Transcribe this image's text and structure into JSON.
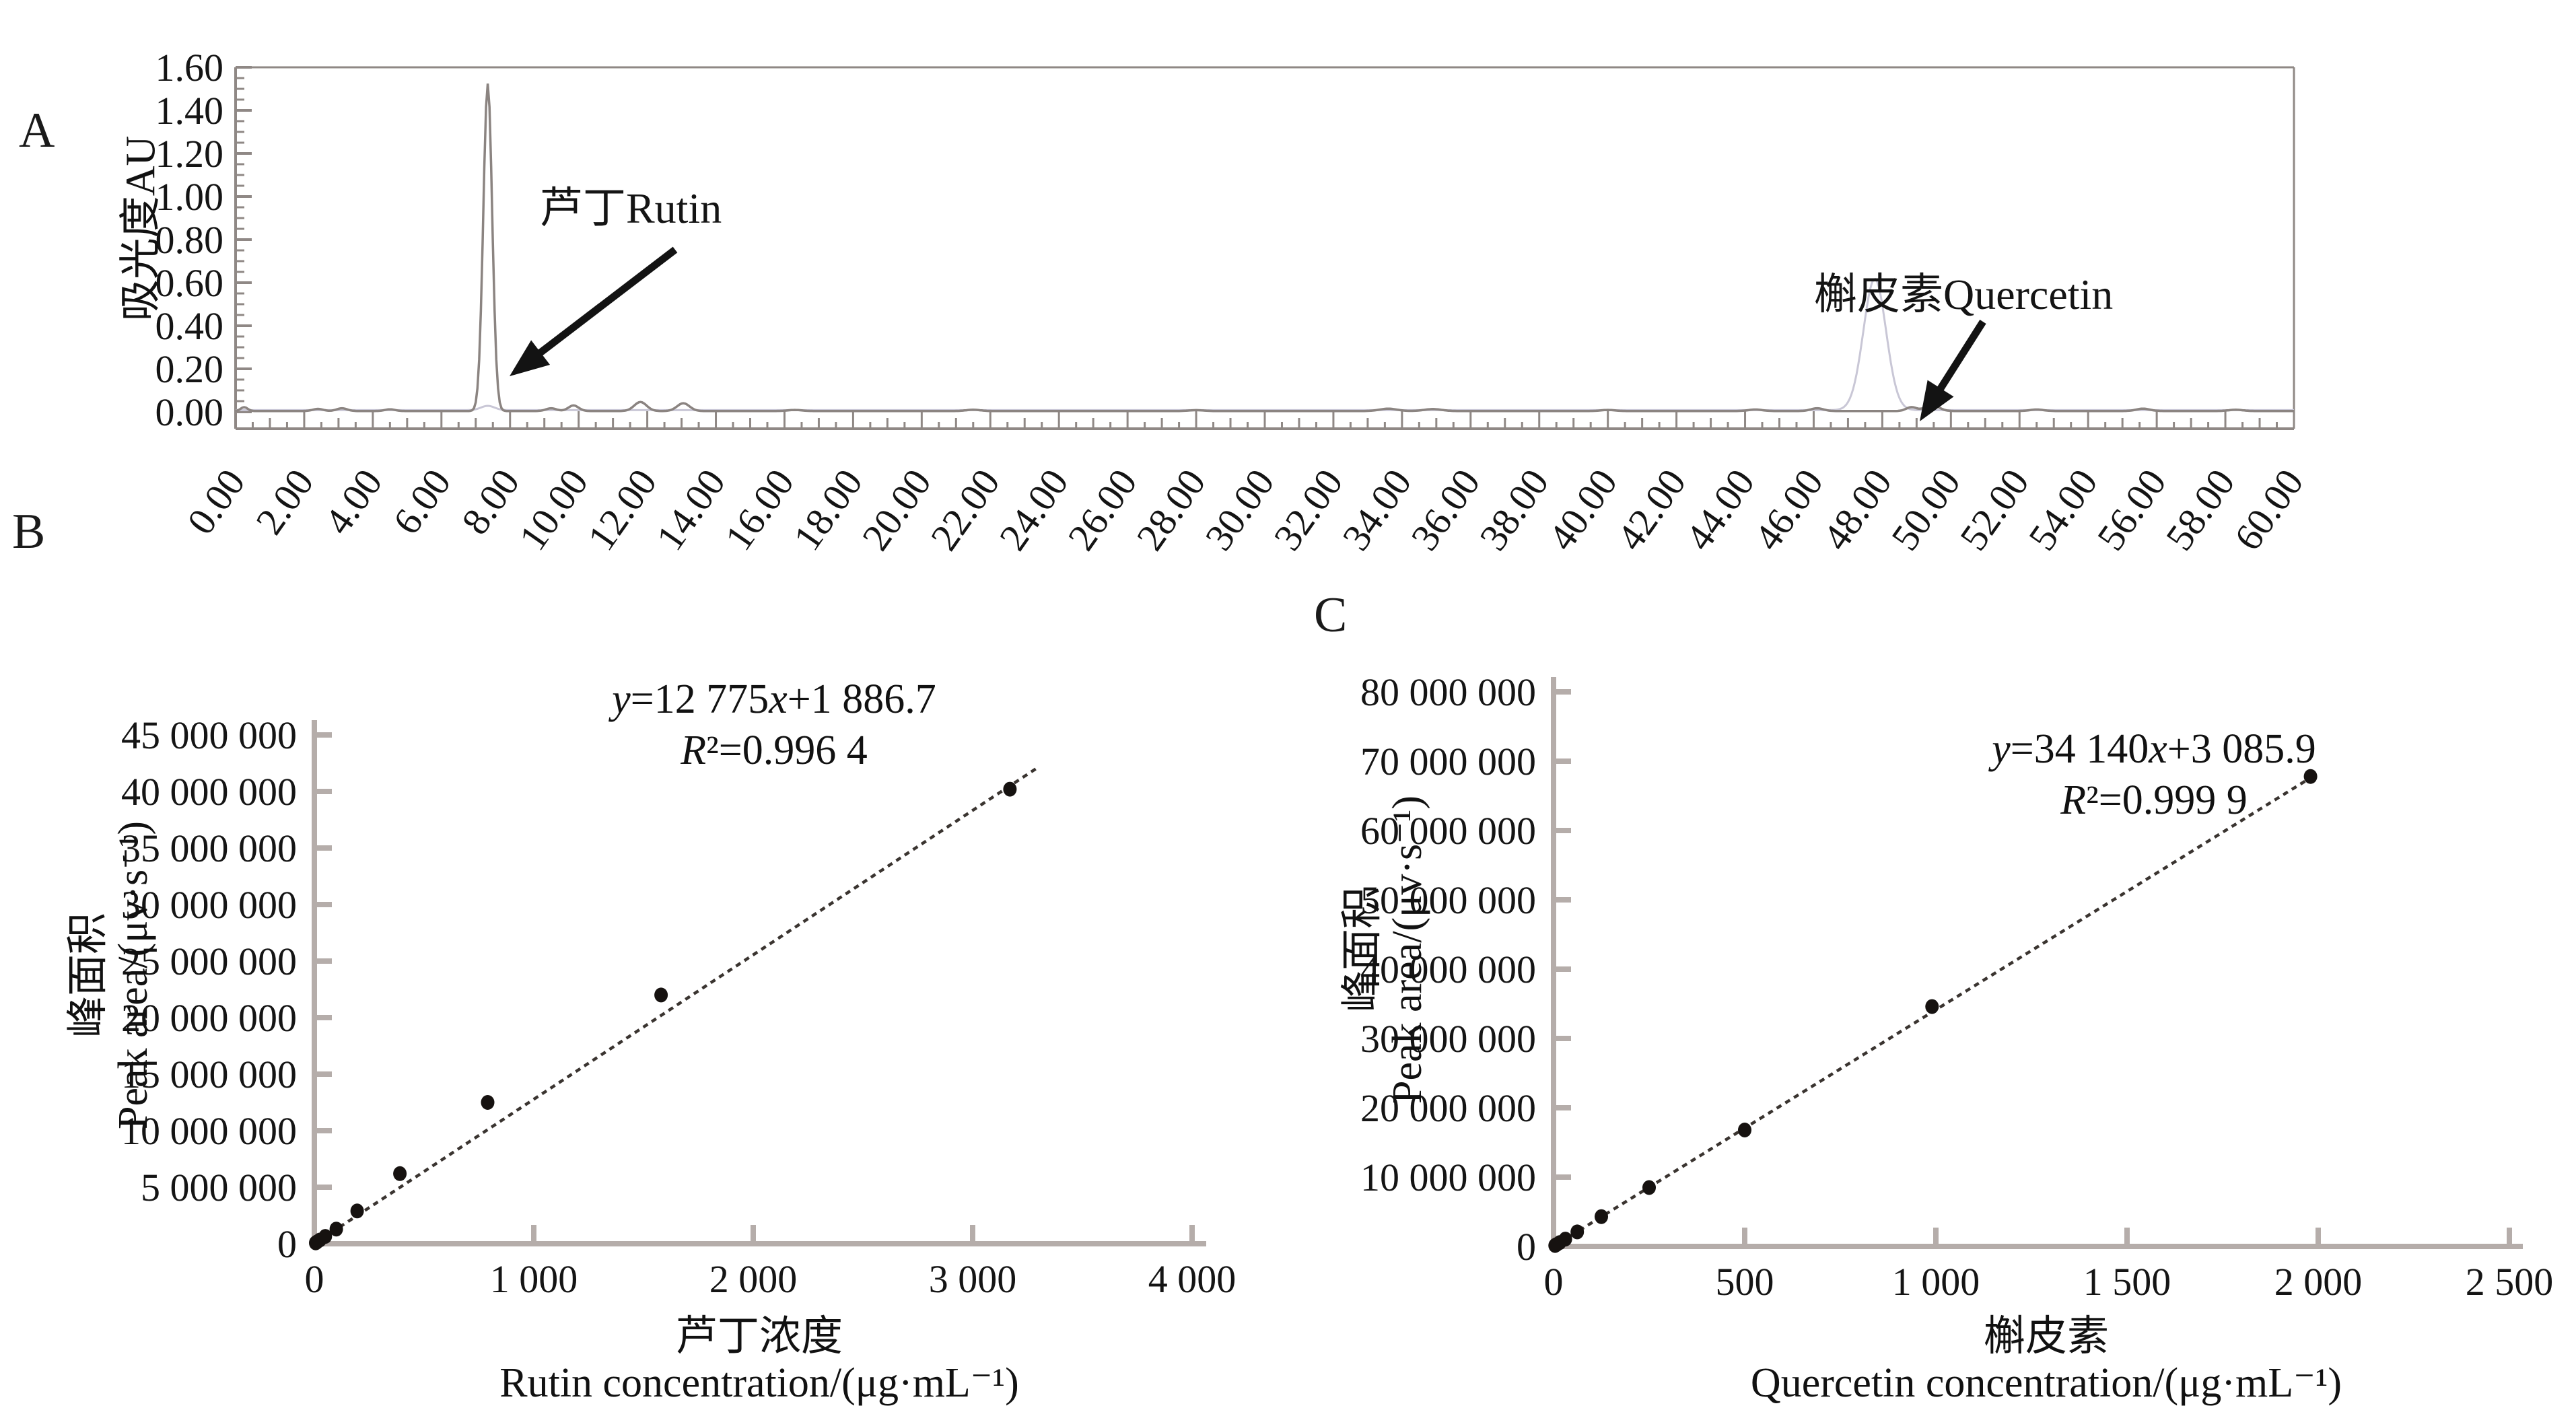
{
  "figure": {
    "background": "#ffffff",
    "text_color": "#141414",
    "axis_color_light": "#b5adaa",
    "axis_color_dark": "#8f8885",
    "trace_color": "#8b8481",
    "trace_color_light": "#c9c7d6",
    "point_color": "#161210",
    "fit_line_color": "#3a3430"
  },
  "chart_data": [
    {
      "id": "hplc-chromatogram",
      "type": "line",
      "panel_label": "A",
      "ylabel": "吸光度AU",
      "xlim": [
        0,
        60
      ],
      "ylim": [
        0,
        1.6
      ],
      "x_tick_step": 2,
      "x_minor_step": 0.5,
      "y_tick_step": 0.2,
      "y_minor_step": 0.05,
      "x_tick_labels": [
        "0.00",
        "2.00",
        "4.00",
        "6.00",
        "8.00",
        "10.00",
        "12.00",
        "14.00",
        "16.00",
        "18.00",
        "20.00",
        "22.00",
        "24.00",
        "26.00",
        "28.00",
        "30.00",
        "32.00",
        "34.00",
        "36.00",
        "38.00",
        "40.00",
        "42.00",
        "44.00",
        "46.00",
        "48.00",
        "50.00",
        "52.00",
        "54.00",
        "56.00",
        "58.00",
        "60.00"
      ],
      "y_tick_labels": [
        "0.00",
        "0.20",
        "0.40",
        "0.60",
        "0.80",
        "1.00",
        "1.20",
        "1.40",
        "1.60"
      ],
      "peaks": [
        {
          "label": "芦丁Rutin",
          "time_min": 7.35,
          "height_au": 1.52,
          "sigma": 0.13
        },
        {
          "label": "槲皮素Quercetin",
          "time_min": 47.78,
          "height_au": 0.61,
          "sigma": 0.33
        }
      ],
      "noise_bumps": [
        [
          0.25,
          0.018,
          0.1
        ],
        [
          2.4,
          0.01,
          0.15
        ],
        [
          3.1,
          0.013,
          0.15
        ],
        [
          4.5,
          0.008,
          0.15
        ],
        [
          9.2,
          0.013,
          0.15
        ],
        [
          9.85,
          0.026,
          0.15
        ],
        [
          11.8,
          0.042,
          0.18
        ],
        [
          13.05,
          0.036,
          0.18
        ],
        [
          16.3,
          0.005,
          0.2
        ],
        [
          21.5,
          0.006,
          0.2
        ],
        [
          28.0,
          0.004,
          0.2
        ],
        [
          33.6,
          0.011,
          0.25
        ],
        [
          34.9,
          0.009,
          0.25
        ],
        [
          40.0,
          0.005,
          0.2
        ],
        [
          44.3,
          0.007,
          0.2
        ],
        [
          46.1,
          0.013,
          0.18
        ],
        [
          48.85,
          0.018,
          0.15
        ],
        [
          49.45,
          0.028,
          0.2
        ],
        [
          52.5,
          0.007,
          0.2
        ],
        [
          55.6,
          0.011,
          0.2
        ],
        [
          58.3,
          0.006,
          0.2
        ]
      ]
    },
    {
      "id": "rutin-calibration",
      "type": "scatter",
      "panel_label": "B",
      "equation": "y=12 775x+1 886.7",
      "r_squared": "R²=0.996 4",
      "slope": 12775,
      "intercept": 1886.7,
      "xlabel_cn": "芦丁浓度",
      "xlabel_en": "Rutin concentration/(μg·mL⁻¹)",
      "ylabel_cn": "峰面积",
      "ylabel_en": "Peak area/(μv·s⁻¹)",
      "xlim": [
        0,
        4000
      ],
      "ylim": [
        0,
        45000000
      ],
      "x_ticks": [
        0,
        1000,
        2000,
        3000,
        4000
      ],
      "x_tick_labels": [
        "0",
        "1 000",
        "2 000",
        "3 000",
        "4 000"
      ],
      "y_ticks": [
        0,
        5000000,
        10000000,
        15000000,
        20000000,
        25000000,
        30000000,
        35000000,
        40000000,
        45000000
      ],
      "y_tick_labels": [
        "0",
        "5 000 000",
        "10 000 000",
        "15 000 000",
        "20 000 000",
        "25 000 000",
        "30 000 000",
        "35 000 000",
        "40 000 000",
        "45 000 000"
      ],
      "points": {
        "x": [
          6,
          12,
          25,
          50,
          100,
          195,
          390,
          790,
          1580,
          3170
        ],
        "y": [
          80000,
          160000,
          330000,
          650000,
          1300000,
          2900000,
          6200000,
          12500000,
          22000000,
          40200000
        ]
      },
      "fit_x_range": [
        0,
        3300
      ],
      "legend": null
    },
    {
      "id": "quercetin-calibration",
      "type": "scatter",
      "panel_label": "C",
      "equation": "y=34 140x+3 085.9",
      "r_squared": "R²=0.999 9",
      "slope": 34140,
      "intercept": 3085.9,
      "xlabel_cn": "槲皮素",
      "xlabel_en": "Quercetin concentration/(μg·mL⁻¹)",
      "ylabel_cn": "峰面积",
      "ylabel_en": "Peak area/(μv·s⁻¹)",
      "xlim": [
        0,
        2500
      ],
      "ylim": [
        0,
        80000000
      ],
      "x_ticks": [
        0,
        500,
        1000,
        1500,
        2000,
        2500
      ],
      "x_tick_labels": [
        "0",
        "500",
        "1 000",
        "1 500",
        "2 000",
        "2 500"
      ],
      "y_ticks": [
        0,
        10000000,
        20000000,
        30000000,
        40000000,
        50000000,
        60000000,
        70000000,
        80000000
      ],
      "y_tick_labels": [
        "0",
        "10 000 000",
        "20 000 000",
        "30 000 000",
        "40 000 000",
        "50 000 000",
        "60 000 000",
        "70 000 000",
        "80 000 000"
      ],
      "points": {
        "x": [
          4,
          8,
          16,
          31,
          62,
          125,
          250,
          500,
          990,
          1980
        ],
        "y": [
          140000,
          270000,
          550000,
          1060000,
          2100000,
          4300000,
          8500000,
          16800000,
          34600000,
          67800000
        ]
      },
      "fit_x_range": [
        0,
        1995
      ],
      "legend": null
    }
  ]
}
